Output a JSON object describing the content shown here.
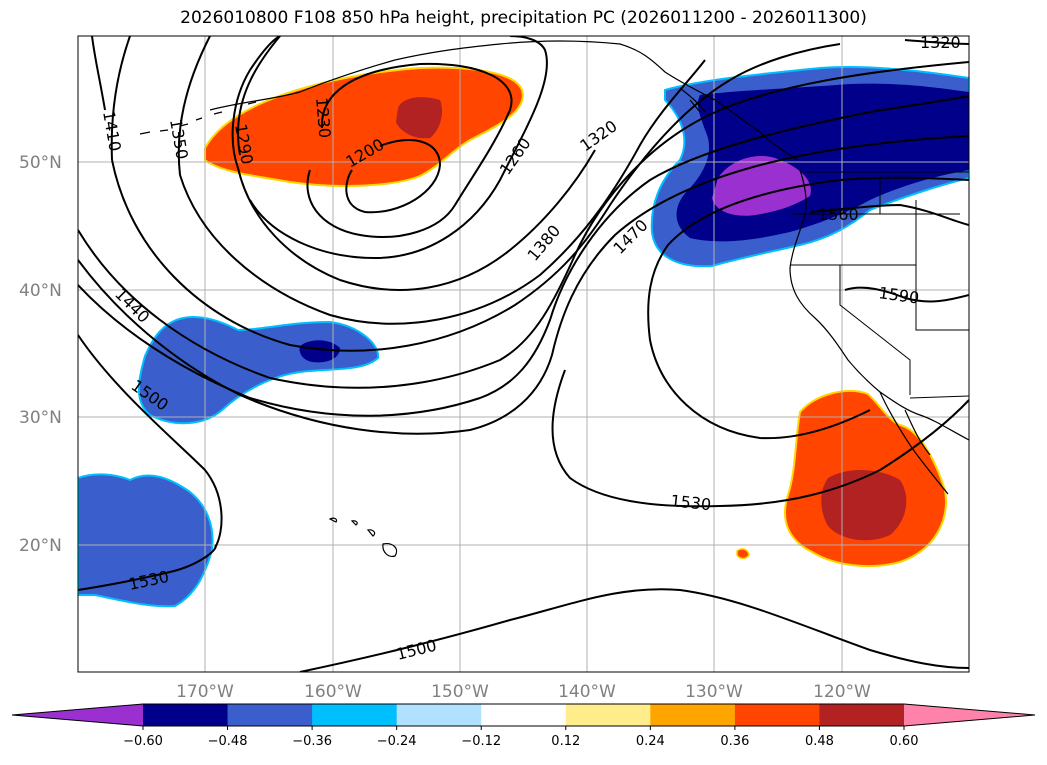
{
  "title": "2026010800 F108 850 hPa height, precipitation PC (2026011200 - 2026011300)",
  "lat_labels": [
    "50°N",
    "40°N",
    "30°N",
    "20°N"
  ],
  "lon_labels": [
    "170°W",
    "160°W",
    "150°W",
    "140°W",
    "130°W",
    "120°W"
  ],
  "contour_labels": [
    "1410",
    "1350",
    "1290",
    "1230",
    "1200",
    "1260",
    "1320",
    "1380",
    "1470",
    "1440",
    "1500",
    "1530",
    "1560",
    "1590",
    "1530",
    "1500",
    "1320"
  ],
  "colorbar": {
    "ticks": [
      "−0.60",
      "−0.48",
      "−0.36",
      "−0.24",
      "−0.12",
      "0.12",
      "0.24",
      "0.36",
      "0.48",
      "0.60"
    ],
    "colors": [
      "#9b30d0",
      "#00008b",
      "#3a5fcd",
      "#00bfff",
      "#b0e2ff",
      "#ffffff",
      "#ffec8b",
      "#ffa500",
      "#ff4500",
      "#b22222",
      "#ff82ab"
    ]
  }
}
